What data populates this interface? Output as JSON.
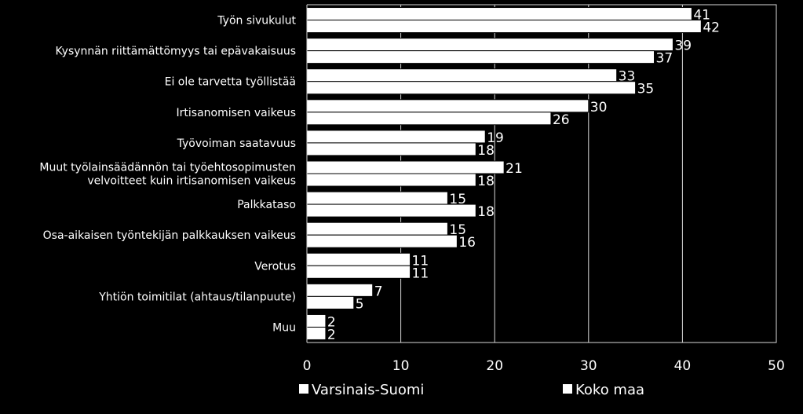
{
  "chart_data": {
    "type": "bar",
    "orientation": "horizontal",
    "title": "",
    "xlabel": "",
    "ylabel": "",
    "xlim": [
      0,
      50
    ],
    "x_ticks": [
      "0",
      "10",
      "20",
      "30",
      "40",
      "50"
    ],
    "grid": true,
    "legend_position": "bottom",
    "categories": [
      [
        "Työn sivukulut"
      ],
      [
        "Kysynnän riittämättömyys tai epävakaisuus"
      ],
      [
        "Ei ole tarvetta työllistää"
      ],
      [
        "Irtisanomisen vaikeus"
      ],
      [
        "Työvoiman saatavuus"
      ],
      [
        "Muut työlainsäädännön tai työehtosopimusten",
        "velvoitteet kuin irtisanomisen vaikeus"
      ],
      [
        "Palkkataso"
      ],
      [
        "Osa-aikaisen työntekijän palkkauksen vaikeus"
      ],
      [
        "Verotus"
      ],
      [
        "Yhtiön toimitilat (ahtaus/tilanpuute)"
      ],
      [
        "Muu"
      ]
    ],
    "series": [
      {
        "name": "Varsinais-Suomi",
        "values": [
          41,
          39,
          33,
          30,
          19,
          21,
          15,
          15,
          11,
          7,
          2
        ]
      },
      {
        "name": "Koko maa",
        "values": [
          42,
          37,
          35,
          26,
          18,
          18,
          18,
          16,
          11,
          5,
          2
        ]
      }
    ],
    "colors": {
      "background": "#000000",
      "bar": "#ffffff",
      "bar_edge": "#000000",
      "grid": "#d9d9d9",
      "text": "#ffffff"
    }
  }
}
